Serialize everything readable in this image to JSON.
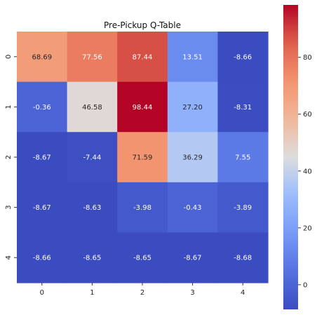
{
  "chart_data": {
    "type": "heatmap",
    "title": "Pre-Pickup Q-Table",
    "xlabel": "",
    "ylabel": "",
    "x_categories": [
      "0",
      "1",
      "2",
      "3",
      "4"
    ],
    "y_categories": [
      "0",
      "1",
      "2",
      "3",
      "4"
    ],
    "values": [
      [
        68.69,
        77.56,
        87.44,
        13.51,
        -8.66
      ],
      [
        -0.36,
        46.58,
        98.44,
        27.2,
        -8.31
      ],
      [
        -8.67,
        -7.44,
        71.59,
        36.29,
        7.55
      ],
      [
        -8.67,
        -8.63,
        -3.98,
        -0.43,
        -3.89
      ],
      [
        -8.66,
        -8.65,
        -8.65,
        -8.67,
        -8.68
      ]
    ],
    "value_labels": [
      [
        "68.69",
        "77.56",
        "87.44",
        "13.51",
        "-8.66"
      ],
      [
        "-0.36",
        "46.58",
        "98.44",
        "27.20",
        "-8.31"
      ],
      [
        "-8.67",
        "-7.44",
        "71.59",
        "36.29",
        "7.55"
      ],
      [
        "-8.67",
        "-8.63",
        "-3.98",
        "-0.43",
        "-3.89"
      ],
      [
        "-8.66",
        "-8.65",
        "-8.65",
        "-8.67",
        "-8.68"
      ]
    ],
    "colormap": "coolwarm",
    "color_range": [
      -8.68,
      98.44
    ],
    "colorbar_ticks": [
      0,
      20,
      40,
      60,
      80
    ],
    "colorbar_tick_labels": [
      "0",
      "20",
      "40",
      "60",
      "80"
    ],
    "annotations": true,
    "grid": false
  }
}
